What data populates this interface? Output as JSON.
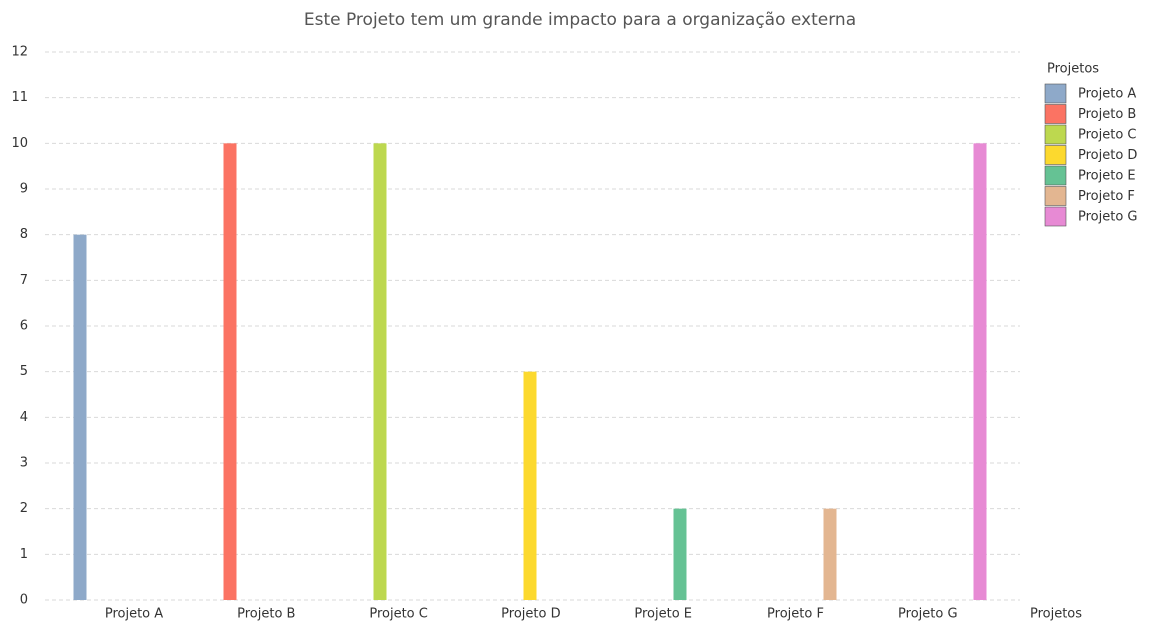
{
  "chart_data": {
    "type": "bar",
    "title": "Este Projeto tem um grande impacto para a organização externa",
    "x_label": "Projetos",
    "legend_title": "Projetos",
    "categories": [
      "Projeto A",
      "Projeto B",
      "Projeto C",
      "Projeto D",
      "Projeto E",
      "Projeto F",
      "Projeto G"
    ],
    "values": [
      8,
      10,
      10,
      5,
      2,
      2,
      10
    ],
    "colors": [
      "#8ea9c9",
      "#fb7363",
      "#bdd84f",
      "#fcd92e",
      "#65c294",
      "#e3b691",
      "#e78ad4"
    ],
    "ylim": [
      0,
      12
    ],
    "yticks": [
      0,
      1,
      2,
      3,
      4,
      5,
      6,
      7,
      8,
      9,
      10,
      11,
      12
    ],
    "grid": true,
    "legend": "right"
  }
}
